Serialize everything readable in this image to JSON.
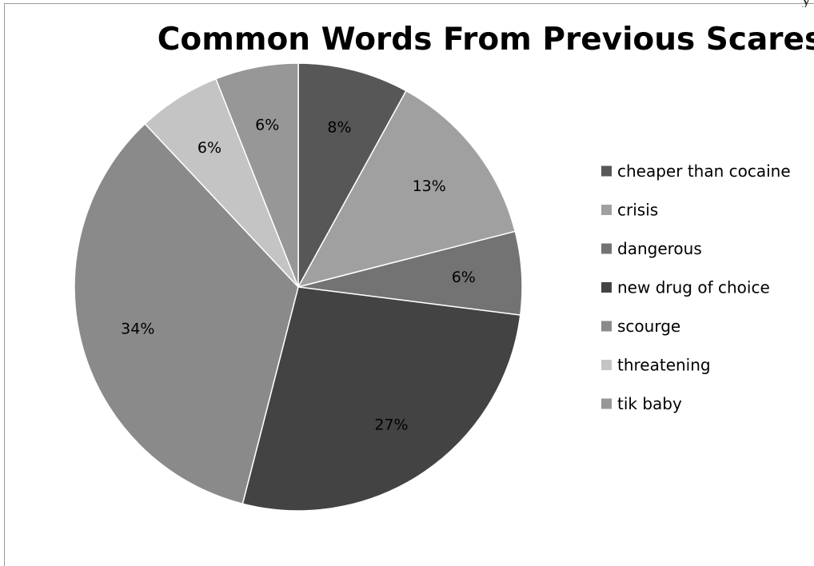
{
  "chart_data": {
    "type": "pie",
    "title": "Common Words From Previous Scares",
    "categories": [
      "cheaper than cocaine",
      "crisis",
      "dangerous",
      "new drug of choice",
      "scourge",
      "threatening",
      "tik baby"
    ],
    "values": [
      8,
      13,
      6,
      27,
      34,
      6,
      6
    ],
    "labels": [
      "8%",
      "13%",
      "6%",
      "27%",
      "34%",
      "6%",
      "6%"
    ],
    "colors": [
      "#575757",
      "#a0a0a0",
      "#737373",
      "#434343",
      "#8a8a8a",
      "#c4c4c4",
      "#979797"
    ],
    "legend_position": "right",
    "start_angle_deg": 0,
    "direction": "clockwise"
  }
}
